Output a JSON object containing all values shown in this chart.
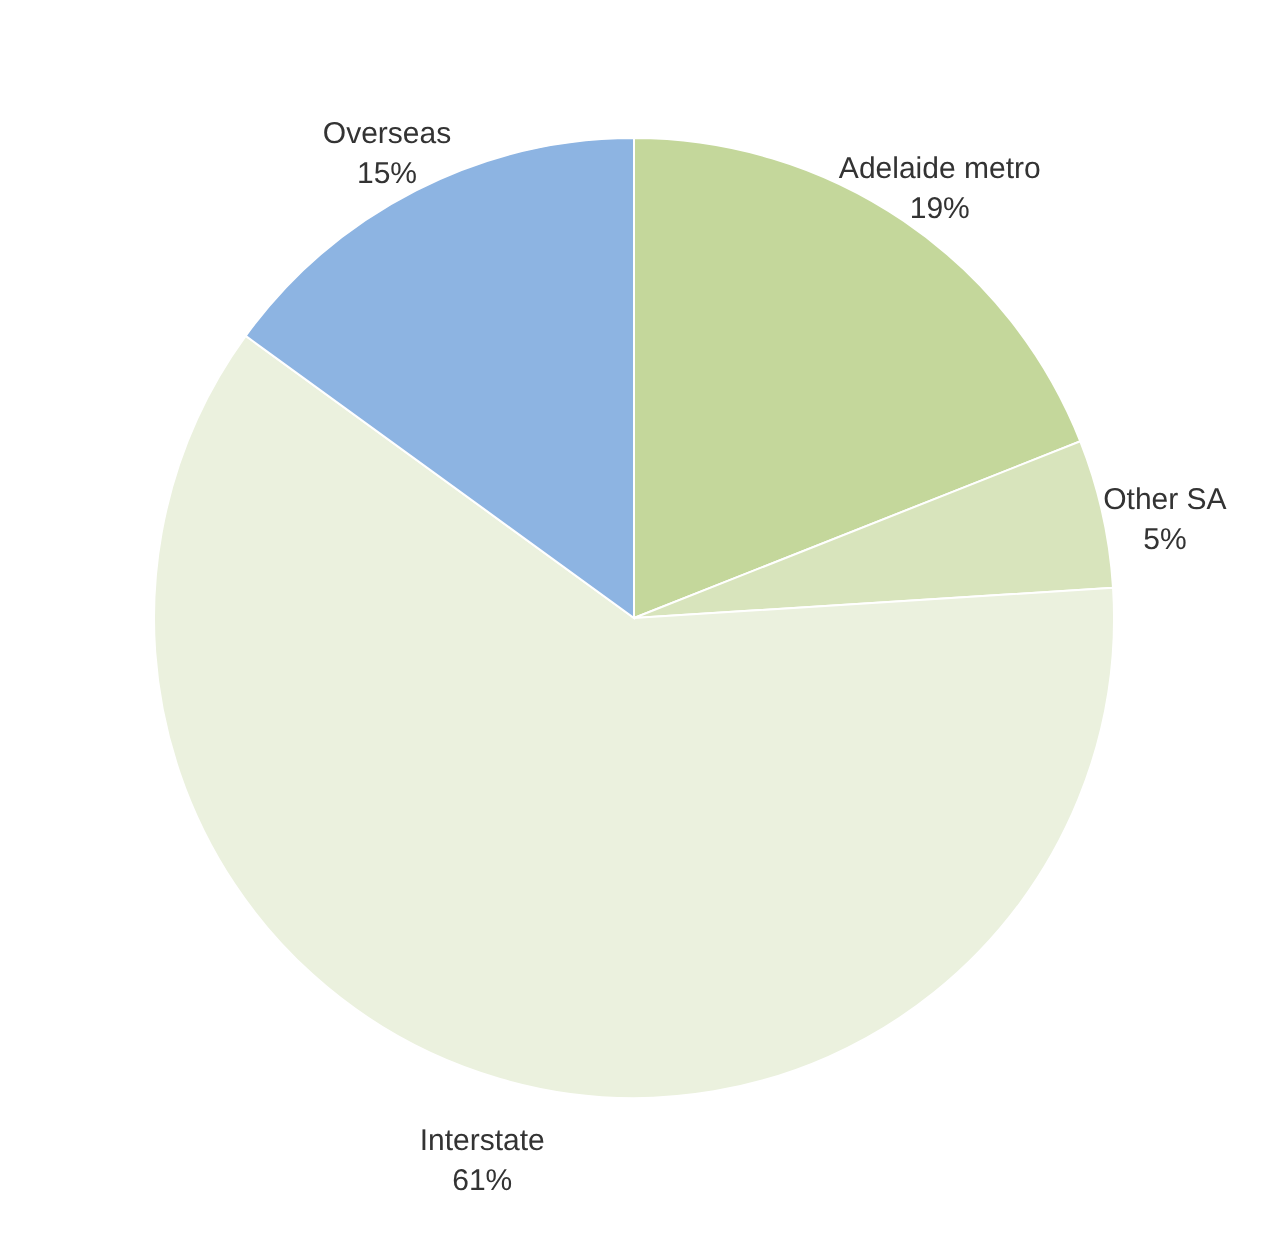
{
  "chart_data": {
    "type": "pie",
    "categories": [
      "Adelaide metro",
      "Other SA",
      "Interstate",
      "Overseas"
    ],
    "values": [
      19,
      5,
      61,
      15
    ],
    "value_labels": [
      "19%",
      "5%",
      "61%",
      "15%"
    ],
    "colors": [
      "#c4d79b",
      "#d8e4bc",
      "#ebf1de",
      "#8db4e2"
    ]
  }
}
